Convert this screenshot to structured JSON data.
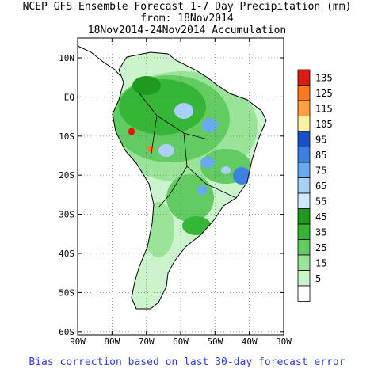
{
  "header": {
    "title_line1": "NCEP GFS Ensemble Forecast 1-7 Day Precipitation (mm)",
    "title_line2": "from: 18Nov2014",
    "title_line3": "18Nov2014-24Nov2014 Accumulation"
  },
  "footer": {
    "text": "Bias correction based on last 30-day forecast error"
  },
  "map": {
    "lat_labels": [
      "10N",
      "EQ",
      "10S",
      "20S",
      "30S",
      "40S",
      "50S",
      "60S"
    ],
    "lon_labels": [
      "90W",
      "80W",
      "70W",
      "60W",
      "50W",
      "40W",
      "30W"
    ]
  },
  "legend": {
    "levels": [
      {
        "label": "135",
        "color": "#e01a10"
      },
      {
        "label": "125",
        "color": "#ff7a1a"
      },
      {
        "label": "115",
        "color": "#ffa040"
      },
      {
        "label": "105",
        "color": "#fff0a0"
      },
      {
        "label": "95",
        "color": "#1a50c8"
      },
      {
        "label": "85",
        "color": "#3c80e0"
      },
      {
        "label": "75",
        "color": "#6aa8f0"
      },
      {
        "label": "65",
        "color": "#a8d0f8"
      },
      {
        "label": "55",
        "color": "#d0e8fc"
      },
      {
        "label": "45",
        "color": "#1e9a1e"
      },
      {
        "label": "35",
        "color": "#36b636"
      },
      {
        "label": "25",
        "color": "#62cc62"
      },
      {
        "label": "15",
        "color": "#9ae49a"
      },
      {
        "label": "5",
        "color": "#ccf4cc"
      },
      {
        "label": "",
        "color": "#ffffff"
      }
    ]
  }
}
